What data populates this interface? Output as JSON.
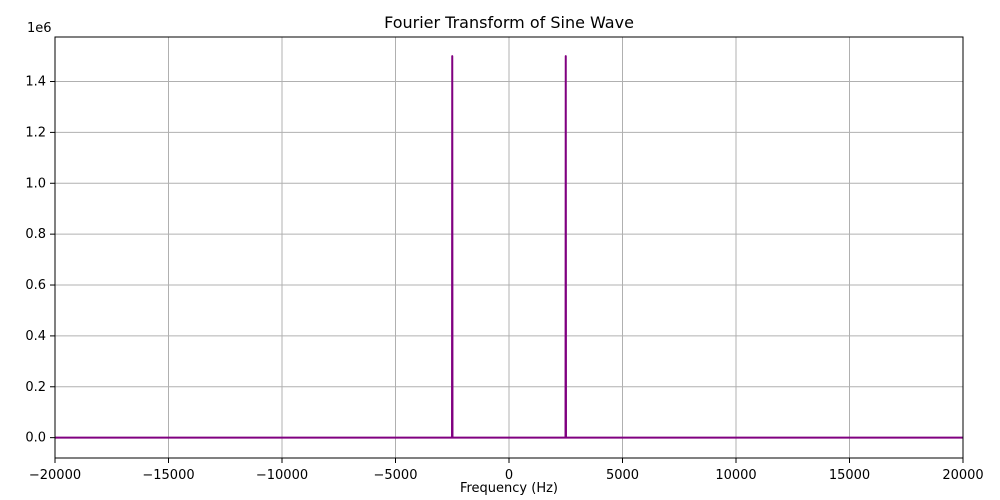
{
  "chart_data": {
    "type": "line",
    "title": "Fourier Transform of Sine Wave",
    "xlabel": "Frequency (Hz)",
    "ylabel": "",
    "xlim": [
      -20000,
      20000
    ],
    "ylim": [
      -80000,
      1575000
    ],
    "y_offset_label": "1e6",
    "x_ticks": [
      -20000,
      -15000,
      -10000,
      -5000,
      0,
      5000,
      10000,
      15000,
      20000
    ],
    "x_tick_labels": [
      "−20000",
      "−15000",
      "−10000",
      "−5000",
      "0",
      "5000",
      "10000",
      "15000",
      "20000"
    ],
    "y_ticks": [
      0,
      200000,
      400000,
      600000,
      800000,
      1000000,
      1200000,
      1400000
    ],
    "y_tick_labels": [
      "0.0",
      "0.2",
      "0.4",
      "0.6",
      "0.8",
      "1.0",
      "1.2",
      "1.4"
    ],
    "grid": true,
    "series": [
      {
        "color": "#800080",
        "x": [
          -20000,
          -2520,
          -2510,
          -2500,
          -2490,
          -2480,
          2480,
          2490,
          2500,
          2510,
          2520,
          20000
        ],
        "y": [
          0,
          0,
          0,
          1500000,
          0,
          0,
          0,
          0,
          1500000,
          0,
          0,
          0
        ]
      }
    ]
  }
}
